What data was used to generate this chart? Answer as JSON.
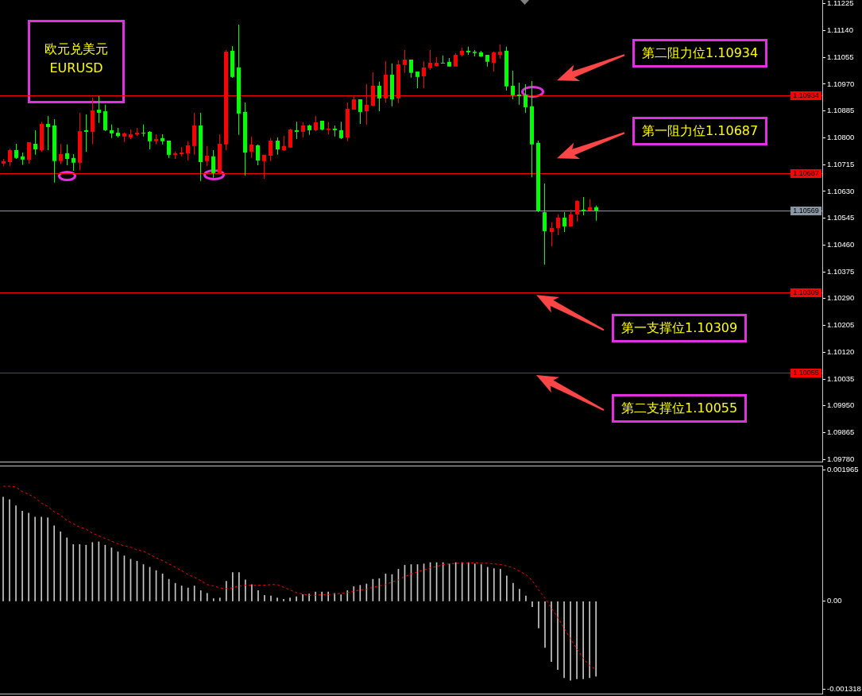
{
  "chart_data": [
    {
      "type": "candlestick",
      "title": "欧元兑美元",
      "subtitle": "EURUSD",
      "categories": [
        null,
        null,
        null,
        null,
        null,
        null,
        null,
        null,
        null,
        null,
        null,
        null,
        null,
        null,
        null,
        null,
        null,
        null,
        null,
        null,
        null,
        null,
        null,
        null,
        null,
        null,
        null,
        null,
        null,
        null,
        null,
        null,
        null,
        null,
        null,
        null,
        null,
        null,
        null,
        null,
        null,
        null,
        null,
        null,
        null,
        null,
        null,
        null,
        null,
        null,
        null,
        null,
        null,
        null,
        null,
        null,
        null,
        null,
        null,
        null,
        null,
        null,
        null,
        null,
        null,
        null,
        null,
        null,
        null,
        null,
        null,
        null,
        null,
        null,
        null,
        null,
        null,
        null,
        null,
        null,
        null,
        null,
        null,
        null,
        null,
        null,
        null,
        null,
        null,
        null,
        null,
        null,
        null,
        null,
        null,
        null,
        null,
        null,
        null,
        null,
        null,
        null,
        null,
        null,
        null,
        null,
        null,
        null,
        null,
        null,
        null,
        null,
        null,
        null,
        null,
        null,
        null,
        null,
        null,
        null,
        null,
        null,
        null,
        null,
        null,
        null,
        null,
        null,
        null
      ],
      "ohlc": [
        [
          1.10718,
          1.10733,
          1.10711,
          1.10726
        ],
        [
          1.10723,
          1.10766,
          1.10711,
          1.10761
        ],
        [
          1.10761,
          1.10781,
          1.10733,
          1.10736
        ],
        [
          1.10741,
          1.10753,
          1.10714,
          1.10731
        ],
        [
          1.10731,
          1.10786,
          1.10718,
          1.10786
        ],
        [
          1.10781,
          1.10824,
          1.10746,
          1.10763
        ],
        [
          1.10761,
          1.10851,
          1.10756,
          1.10844
        ],
        [
          1.10844,
          1.10869,
          1.10761,
          1.10834
        ],
        [
          1.10839,
          1.10859,
          1.10658,
          1.10726
        ],
        [
          1.10726,
          1.10781,
          1.10716,
          1.10748
        ],
        [
          1.10751,
          1.10779,
          1.10713,
          1.10733
        ],
        [
          1.10736,
          1.10748,
          1.10695,
          1.10721
        ],
        [
          1.10721,
          1.10879,
          1.10698,
          1.10821
        ],
        [
          1.10824,
          1.10874,
          1.10756,
          1.10819
        ],
        [
          1.10819,
          1.10927,
          1.10779,
          1.10887
        ],
        [
          1.10889,
          1.10932,
          1.10847,
          1.10879
        ],
        [
          1.10884,
          1.10905,
          1.10821,
          1.10824
        ],
        [
          1.10824,
          1.10842,
          1.10799,
          1.10814
        ],
        [
          1.10816,
          1.10831,
          1.10801,
          1.10806
        ],
        [
          1.10804,
          1.10816,
          1.10786,
          1.10814
        ],
        [
          1.10801,
          1.10826,
          1.10796,
          1.10811
        ],
        [
          1.10811,
          1.10831,
          1.10806,
          1.10816
        ],
        [
          1.10816,
          1.10842,
          1.10804,
          1.10814
        ],
        [
          1.10819,
          1.10821,
          1.10763,
          1.10789
        ],
        [
          1.10789,
          1.10811,
          1.10779,
          1.10796
        ],
        [
          1.10799,
          1.10811,
          1.10779,
          1.10789
        ],
        [
          1.10791,
          1.10791,
          1.10736,
          1.10746
        ],
        [
          1.10746,
          1.10756,
          1.10733,
          1.10751
        ],
        [
          1.10748,
          1.10771,
          1.10741,
          1.10753
        ],
        [
          1.10751,
          1.10789,
          1.10728,
          1.10776
        ],
        [
          1.10774,
          1.10879,
          1.10746,
          1.10839
        ],
        [
          1.10839,
          1.10879,
          1.10663,
          1.10723
        ],
        [
          1.10726,
          1.10774,
          1.10711,
          1.10743
        ],
        [
          1.10741,
          1.10761,
          1.10673,
          1.10688
        ],
        [
          1.10688,
          1.10811,
          1.10683,
          1.10781
        ],
        [
          1.10779,
          1.11078,
          1.10761,
          1.11073
        ],
        [
          1.11076,
          1.11091,
          1.1099,
          1.10993
        ],
        [
          1.11023,
          1.11159,
          1.10809,
          1.10877
        ],
        [
          1.10882,
          1.10912,
          1.1068,
          1.10753
        ],
        [
          1.10756,
          1.10804,
          1.10736,
          1.10779
        ],
        [
          1.10776,
          1.10779,
          1.10713,
          1.10728
        ],
        [
          1.10726,
          1.10746,
          1.1067,
          1.10746
        ],
        [
          1.10743,
          1.10799,
          1.10726,
          1.10791
        ],
        [
          1.10791,
          1.10801,
          1.10746,
          1.10763
        ],
        [
          1.10761,
          1.10806,
          1.10758,
          1.10774
        ],
        [
          1.10769,
          1.10829,
          1.10769,
          1.10826
        ],
        [
          1.10824,
          1.10851,
          1.10796,
          1.10819
        ],
        [
          1.10819,
          1.10849,
          1.10801,
          1.10839
        ],
        [
          1.10839,
          1.10842,
          1.10809,
          1.10824
        ],
        [
          1.10824,
          1.10869,
          1.10821,
          1.10849
        ],
        [
          1.10854,
          1.10854,
          1.10824,
          1.10826
        ],
        [
          1.10826,
          1.10851,
          1.10811,
          1.10829
        ],
        [
          1.10829,
          1.10839,
          1.10804,
          1.10824
        ],
        [
          1.10824,
          1.10851,
          1.10796,
          1.10799
        ],
        [
          1.10801,
          1.10912,
          1.10789,
          1.10892
        ],
        [
          1.10889,
          1.1093,
          1.10889,
          1.10922
        ],
        [
          1.10922,
          1.10922,
          1.10844,
          1.10882
        ],
        [
          1.10884,
          1.1097,
          1.10842,
          1.10905
        ],
        [
          1.10902,
          1.11008,
          1.109,
          1.10965
        ],
        [
          1.10965,
          1.10978,
          1.10884,
          1.10925
        ],
        [
          1.10925,
          1.11043,
          1.10912,
          1.11
        ],
        [
          1.11,
          1.11036,
          1.109,
          1.10922
        ],
        [
          1.10925,
          1.11046,
          1.1091,
          1.11033
        ],
        [
          1.11031,
          1.11078,
          1.11006,
          1.11048
        ],
        [
          1.11048,
          1.11048,
          1.10991,
          1.11006
        ],
        [
          1.1101,
          1.1101,
          1.10957,
          1.10993
        ],
        [
          1.10995,
          1.11043,
          1.10957,
          1.11023
        ],
        [
          1.11021,
          1.11078,
          1.11015,
          1.11038
        ],
        [
          1.11028,
          1.11056,
          1.11026,
          1.11038
        ],
        [
          1.11038,
          1.11061,
          1.11036,
          1.11036
        ],
        [
          1.11041,
          1.11053,
          1.11026,
          1.11026
        ],
        [
          1.11026,
          1.11068,
          1.11026,
          1.11063
        ],
        [
          1.11063,
          1.11086,
          1.11058,
          1.11076
        ],
        [
          1.11076,
          1.11089,
          1.11063,
          1.11071
        ],
        [
          1.11073,
          1.11078,
          1.11058,
          1.11069
        ],
        [
          1.11071,
          1.11076,
          1.11056,
          1.11058
        ],
        [
          1.11063,
          1.11063,
          1.11026,
          1.11041
        ],
        [
          1.11038,
          1.11073,
          1.1101,
          1.11071
        ],
        [
          1.11063,
          1.11096,
          1.11051,
          1.11073
        ],
        [
          1.11076,
          1.11089,
          1.1095,
          1.10963
        ],
        [
          1.10965,
          1.11013,
          1.10922,
          1.10935
        ],
        [
          1.10937,
          1.10975,
          1.10905,
          1.10932
        ],
        [
          1.10935,
          1.1097,
          1.10879,
          1.10897
        ],
        [
          1.109,
          1.1098,
          1.10675,
          1.10779
        ],
        [
          1.10784,
          1.10791,
          1.10564,
          1.10567
        ],
        [
          1.10564,
          1.10655,
          1.10398,
          1.10504
        ],
        [
          1.10501,
          1.10532,
          1.10456,
          1.10514
        ],
        [
          1.10514,
          1.10557,
          1.10491,
          1.10547
        ],
        [
          1.10547,
          1.10564,
          1.10501,
          1.10519
        ],
        [
          1.10519,
          1.10572,
          1.10519,
          1.10557
        ],
        [
          1.10557,
          1.10602,
          1.10534,
          1.106
        ],
        [
          1.10572,
          1.10612,
          1.10554,
          1.10567
        ],
        [
          1.10569,
          1.10605,
          1.10569,
          1.1058
        ],
        [
          1.1058,
          1.10585,
          1.10537,
          1.10569
        ],
        null,
        null,
        null,
        null,
        null,
        null,
        null,
        null,
        null,
        null,
        null,
        null,
        null,
        null,
        null,
        null,
        null,
        null,
        null,
        null,
        null,
        null,
        null,
        null,
        null,
        null,
        null,
        null,
        null,
        null,
        null,
        null,
        null,
        null,
        null
      ],
      "colors": [
        "#ff0000",
        "#ff0000",
        "#00ff00",
        "#00ff00",
        "#ff0000",
        "#00ff00",
        "#ff0000",
        "#00ff00",
        "#00ff00",
        "#ff0000",
        "#00ff00",
        "#00ff00",
        "#ff0000",
        "#00ff00",
        "#ff0000",
        "#00ff00",
        "#00ff00",
        "#00ff00",
        "#00ff00",
        "#ff0000",
        "#ff0000",
        "#ff0000",
        "#00ff00",
        "#00ff00",
        "#ff0000",
        "#00ff00",
        "#00ff00",
        "#ff0000",
        "#ff0000",
        "#ff0000",
        "#ff0000",
        "#00ff00",
        "#ff0000",
        "#00ff00",
        "#ff0000",
        "#ff0000",
        "#00ff00",
        "#00ff00",
        "#00ff00",
        "#ff0000",
        "#00ff00",
        "#ff0000",
        "#ff0000",
        "#00ff00",
        "#ff0000",
        "#ff0000",
        "#00ff00",
        "#ff0000",
        "#00ff00",
        "#ff0000",
        "#00ff00",
        "#ff0000",
        "#00ff00",
        "#00ff00",
        "#ff0000",
        "#ff0000",
        "#00ff00",
        "#ff0000",
        "#ff0000",
        "#00ff00",
        "#ff0000",
        "#00ff00",
        "#ff0000",
        "#ff0000",
        "#00ff00",
        "#00ff00",
        "#ff0000",
        "#ff0000",
        "#ff0000",
        "#00ff00",
        "#00ff00",
        "#ff0000",
        "#ff0000",
        "#00ff00",
        "#00ff00",
        "#00ff00",
        "#00ff00",
        "#ff0000",
        "#ff0000",
        "#00ff00",
        "#00ff00",
        "#00ff00",
        "#00ff00",
        "#00ff00",
        "#00ff00",
        "#00ff00",
        "#ff0000",
        "#ff0000",
        "#00ff00",
        "#ff0000",
        "#ff0000",
        "#00ff00",
        "#ff0000",
        "#00ff00",
        null,
        null,
        null,
        null,
        null,
        null,
        null,
        null,
        null,
        null,
        null,
        null,
        null,
        null,
        null,
        null,
        null,
        null,
        null,
        null,
        null,
        null,
        null,
        null,
        null,
        null,
        null,
        null,
        null,
        null,
        null,
        null,
        null,
        null,
        null
      ],
      "ylim": [
        1.09773,
        1.11237
      ],
      "yticks": [
        1.11225,
        {
          "value": 1.1114,
          "label": "1.11140"
        },
        1.11055,
        {
          "value": 1.1097,
          "label": "1.10970"
        },
        1.10885,
        {
          "value": 1.108,
          "label": "1.10800"
        },
        1.10715,
        {
          "value": 1.1063,
          "label": "1.10630"
        },
        1.10545,
        {
          "value": 1.1046,
          "label": "1.10460"
        },
        1.10375,
        {
          "value": 1.1029,
          "label": "1.10290"
        },
        1.10205,
        {
          "value": 1.1012,
          "label": "1.10120"
        },
        1.10035,
        {
          "value": 1.0995,
          "label": "1.09950"
        },
        1.09865,
        {
          "value": 1.0978,
          "label": "1.09780"
        }
      ],
      "ref_lines": [
        {
          "axis": "y",
          "value": 1.10934,
          "label": "1.10934",
          "color": "#ff0000"
        },
        {
          "axis": "y",
          "value": 1.10687,
          "label": "1.10687",
          "color": "#ff0000"
        },
        {
          "axis": "y",
          "value": 1.10569,
          "label": "1.10569",
          "color": "#8a96a3"
        },
        {
          "axis": "y",
          "value": 1.10309,
          "label": "1.10309",
          "color": "#ff0000"
        },
        {
          "axis": "y",
          "value": 1.10055,
          "label": "1.10055",
          "color": "#ff0000"
        }
      ],
      "annotations": [
        {
          "text": "第二阻力位1.10934",
          "y": 1.10934
        },
        {
          "text": "第一阻力位1.10687",
          "y": 1.10687
        },
        {
          "text": "第一支撑位1.10309",
          "y": 1.10309
        },
        {
          "text": "第二支撑位1.10055",
          "y": 1.10055
        }
      ]
    },
    {
      "type": "bar",
      "categories": [
        null,
        null,
        null,
        null,
        null,
        null,
        null,
        null,
        null,
        null,
        null,
        null,
        null,
        null,
        null,
        null,
        null,
        null,
        null,
        null,
        null,
        null,
        null,
        null,
        null,
        null,
        null,
        null,
        null,
        null,
        null,
        null,
        null,
        null,
        null,
        null,
        null,
        null,
        null,
        null,
        null,
        null,
        null,
        null,
        null,
        null,
        null,
        null,
        null,
        null,
        null,
        null,
        null,
        null,
        null,
        null,
        null,
        null,
        null,
        null,
        null,
        null,
        null,
        null,
        null,
        null,
        null,
        null,
        null,
        null,
        null,
        null,
        null,
        null,
        null,
        null,
        null,
        null,
        null,
        null,
        null,
        null,
        null,
        null,
        null,
        null,
        null,
        null,
        null,
        null,
        null,
        null,
        null,
        null,
        null,
        null,
        null,
        null,
        null,
        null,
        null,
        null,
        null,
        null,
        null,
        null,
        null,
        null,
        null,
        null,
        null,
        null,
        null,
        null,
        null,
        null,
        null,
        null,
        null,
        null,
        null,
        null,
        null,
        null,
        null,
        null,
        null,
        null,
        null
      ],
      "series": [
        {
          "type": "bar",
          "color": "#c8c8c8",
          "values": [
            0.00156,
            0.00152,
            0.00143,
            0.00135,
            0.00132,
            0.00126,
            0.00126,
            0.00125,
            0.00113,
            0.00104,
            0.00095,
            0.00085,
            0.00085,
            0.00084,
            0.00088,
            0.00089,
            0.00084,
            0.0008,
            0.00074,
            0.00068,
            0.00063,
            0.0006,
            0.00055,
            0.00051,
            0.00046,
            0.00041,
            0.00033,
            0.00027,
            0.00023,
            0.0002,
            0.00023,
            0.00016,
            0.00012,
            4e-05,
            5e-05,
            0.0003,
            0.00043,
            0.00043,
            0.00032,
            0.00025,
            0.00016,
            9e-05,
            8e-05,
            5e-05,
            3e-05,
            5e-05,
            7e-05,
            0.0001,
            0.00011,
            0.00014,
            0.00014,
            0.00014,
            0.00012,
            0.0001,
            0.00016,
            0.00022,
            0.00024,
            0.00026,
            0.00033,
            0.00034,
            0.00041,
            0.0004,
            0.00048,
            0.00054,
            0.00055,
            0.00055,
            0.00056,
            0.00058,
            0.00058,
            0.00058,
            0.00056,
            0.00058,
            0.00058,
            0.00058,
            0.00056,
            0.00055,
            0.00051,
            0.00049,
            0.00048,
            0.00038,
            0.00027,
            0.00018,
            8e-05,
            -8e-05,
            -0.0004,
            -0.00069,
            -0.0009,
            -0.00102,
            -0.00114,
            -0.00118,
            -0.00116,
            -0.00116,
            -0.00114,
            -0.00112,
            null,
            null,
            null,
            null,
            null,
            null,
            null,
            null,
            null,
            null,
            null,
            null,
            null,
            null,
            null,
            null,
            null,
            null,
            null,
            null,
            null,
            null,
            null,
            null,
            null,
            null,
            null,
            null,
            null,
            null,
            null,
            null,
            null,
            null,
            null
          ]
        },
        {
          "type": "line",
          "color": "#ff0000",
          "line_style": "dotted",
          "marker": "none",
          "values": [
            0.00172,
            0.00172,
            0.00171,
            0.00164,
            0.0016,
            0.00155,
            0.00147,
            0.00142,
            0.00134,
            0.00129,
            0.00121,
            0.00116,
            0.00111,
            0.00108,
            0.00102,
            0.00098,
            0.00094,
            0.0009,
            0.00086,
            0.00083,
            0.00081,
            0.00077,
            0.00075,
            0.0007,
            0.00065,
            0.00061,
            0.00056,
            0.00051,
            0.00046,
            0.0004,
            0.00036,
            0.00031,
            0.00025,
            0.00023,
            0.0002,
            0.00019,
            0.0002,
            0.00023,
            0.00024,
            0.00024,
            0.00024,
            0.00024,
            0.00025,
            0.00025,
            0.00021,
            0.00017,
            0.00013,
            0.00011,
            9e-05,
            9e-05,
            0.0001,
            0.0001,
            0.00011,
            0.00012,
            0.00013,
            0.00015,
            0.00017,
            0.00018,
            0.00021,
            0.00023,
            0.00025,
            0.00029,
            0.00032,
            0.00037,
            0.00041,
            0.00044,
            0.00047,
            0.0005,
            0.00052,
            0.00055,
            0.00056,
            0.00057,
            0.00057,
            0.00057,
            0.00058,
            0.00057,
            0.00057,
            0.00056,
            0.00055,
            0.00053,
            0.0005,
            0.00045,
            0.0004,
            0.00031,
            0.00017,
            5e-05,
            -0.0001,
            -0.00024,
            -0.0004,
            -0.00056,
            -0.00071,
            -0.00085,
            -0.00096,
            -0.00102,
            null,
            null,
            null,
            null,
            null,
            null,
            null,
            null,
            null,
            null,
            null,
            null,
            null,
            null,
            null,
            null,
            null,
            null,
            null,
            null,
            null,
            null,
            null,
            null,
            null,
            null,
            null,
            null,
            null,
            null,
            null,
            null,
            null,
            null,
            null
          ]
        }
      ],
      "ylim": [
        -0.00138,
        0.00203
      ],
      "yticks": [
        0.001965,
        {
          "value": 0,
          "label": "0.00"
        },
        -0.001318
      ]
    }
  ]
}
